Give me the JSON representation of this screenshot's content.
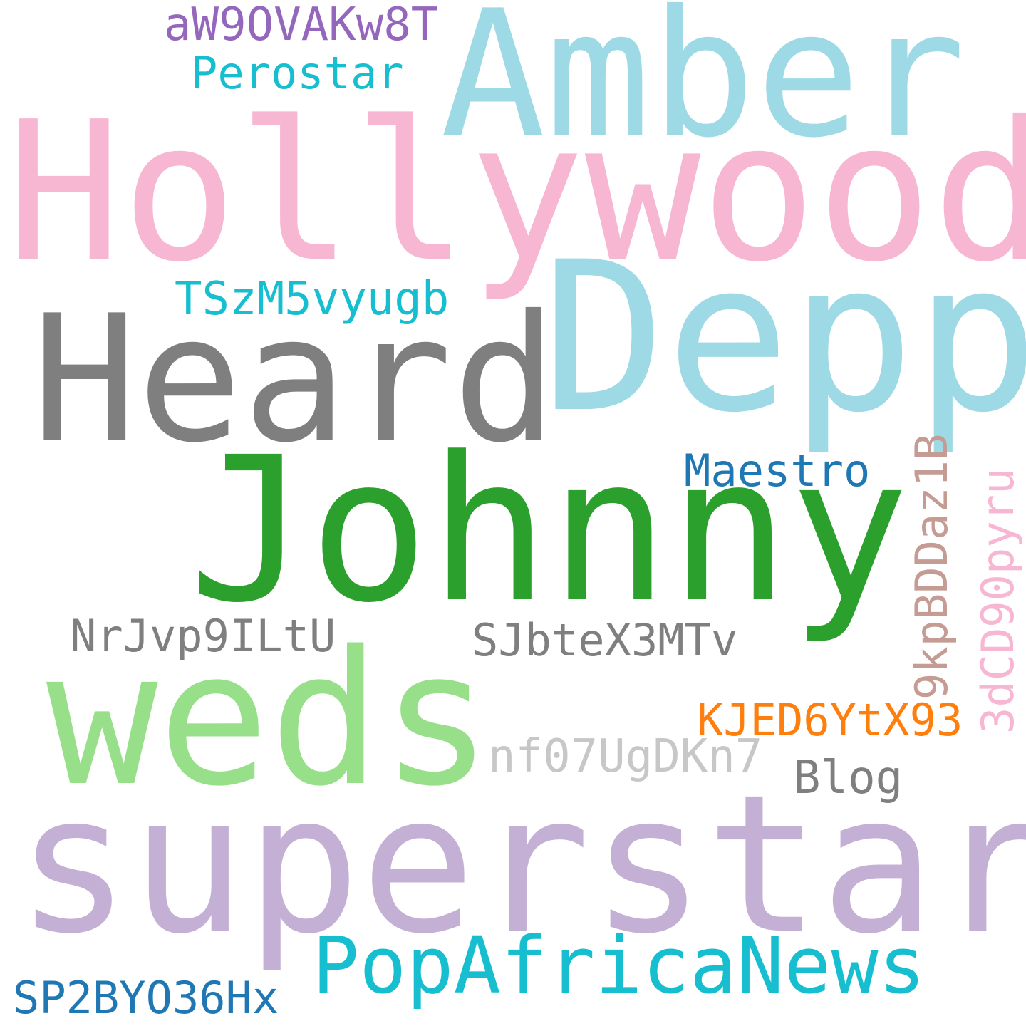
{
  "words": {
    "hollywood": {
      "text": "Hollywood",
      "color": "#f7b6d2"
    },
    "superstar": {
      "text": "superstar",
      "color": "#c5b0d5"
    },
    "johnny": {
      "text": "Johnny",
      "color": "#2ca02c"
    },
    "depp": {
      "text": "Depp",
      "color": "#9edae5"
    },
    "amber": {
      "text": "Amber",
      "color": "#9edae5"
    },
    "heard": {
      "text": "Heard",
      "color": "#7f7f7f"
    },
    "weds": {
      "text": "weds",
      "color": "#98df8a"
    },
    "popafrica": {
      "text": "PopAfricaNews",
      "color": "#17becf"
    },
    "maestro": {
      "text": "Maestro",
      "color": "#1f77b4"
    },
    "tszm": {
      "text": "TSzM5vyugb",
      "color": "#17becf"
    },
    "aw9o": {
      "text": "aW9OVAKw8T",
      "color": "#9467bd"
    },
    "perostar": {
      "text": "Perostar",
      "color": "#17becf"
    },
    "nrjvp": {
      "text": "NrJvp9ILtU",
      "color": "#7f7f7f"
    },
    "sjbte": {
      "text": "SJbteX3MTv",
      "color": "#7f7f7f"
    },
    "kjed": {
      "text": "KJED6YtX93",
      "color": "#ff7f0e"
    },
    "nf07": {
      "text": "nf07UgDKn7",
      "color": "#c7c7c7"
    },
    "blog": {
      "text": "Blog",
      "color": "#7f7f7f"
    },
    "sp2b": {
      "text": "SP2BYO36Hx",
      "color": "#1f77b4"
    },
    "9kpb": {
      "text": "9kpBDDaz1B",
      "color": "#c49c94"
    },
    "3dcd": {
      "text": "3dCD90pyru",
      "color": "#f7b6d2"
    }
  }
}
